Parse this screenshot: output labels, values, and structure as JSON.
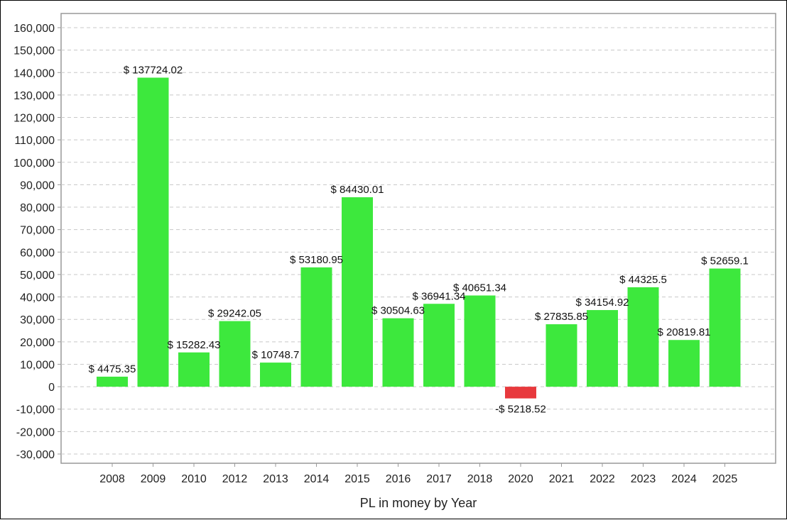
{
  "chart_data": {
    "type": "bar",
    "title": "",
    "xlabel": "PL in money by Year",
    "ylabel": "",
    "ylim": [
      -30000,
      160000
    ],
    "yticks": [
      160000,
      150000,
      140000,
      130000,
      120000,
      110000,
      100000,
      90000,
      80000,
      70000,
      60000,
      50000,
      40000,
      30000,
      20000,
      10000,
      0,
      -10000,
      -20000,
      -30000
    ],
    "ytick_labels": [
      "160,000",
      "150,000",
      "140,000",
      "130,000",
      "120,000",
      "110,000",
      "100,000",
      "90,000",
      "80,000",
      "70,000",
      "60,000",
      "50,000",
      "40,000",
      "30,000",
      "20,000",
      "10,000",
      "0",
      "-10,000",
      "-20,000",
      "-30,000"
    ],
    "grid": true,
    "categories": [
      "2008",
      "2009",
      "2010",
      "2012",
      "2013",
      "2014",
      "2015",
      "2016",
      "2017",
      "2018",
      "2020",
      "2021",
      "2022",
      "2023",
      "2024",
      "2025"
    ],
    "values": [
      4475.35,
      137724.02,
      15282.43,
      29242.05,
      10748.7,
      53180.95,
      84430.01,
      30504.63,
      36941.34,
      40651.34,
      -5218.52,
      27835.85,
      34154.92,
      44325.5,
      20819.81,
      52659.1
    ],
    "data_labels": [
      "$ 4475.35",
      "$ 137724.02",
      "$ 15282.43",
      "$ 29242.05",
      "$ 10748.7",
      "$ 53180.95",
      "$ 84430.01",
      "$ 30504.63",
      "$ 36941.34",
      "$ 40651.34",
      "-$ 5218.52",
      "$ 27835.85",
      "$ 34154.92",
      "$ 44325.5",
      "$ 20819.81",
      "$ 52659.1"
    ],
    "colors": {
      "positive": "#3de83d",
      "negative": "#e8393d",
      "grid": "#c8c8c8",
      "axis": "#999999"
    },
    "legend": "none"
  }
}
